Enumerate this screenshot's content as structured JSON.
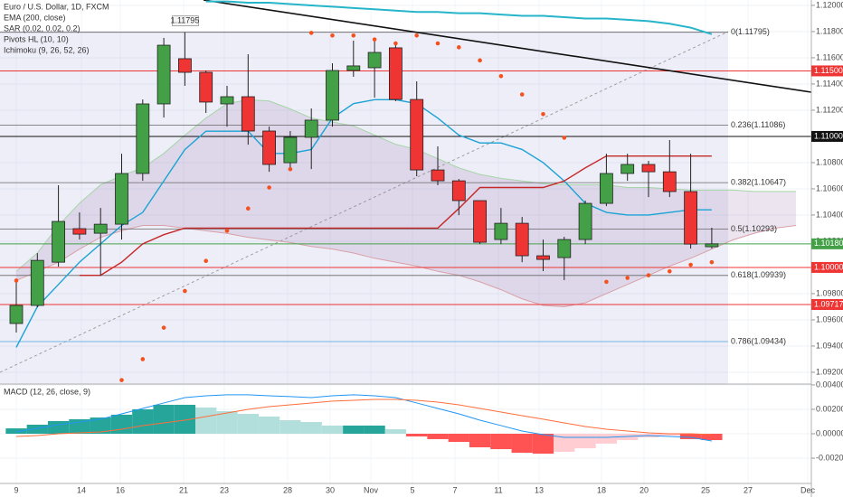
{
  "chart_data": {
    "type": "candlestick",
    "title": "Euro / U.S. Dollar, 1D, FXCM",
    "legend": [
      "EMA (200, close)",
      "SAR (0.02, 0.02, 0.2)",
      "Pivots HL (10, 10)",
      "Ichimoku (9, 26, 52, 26)"
    ],
    "up_color": "#43a047",
    "down_color": "#ef3434",
    "open": [
      1.09572,
      1.0971,
      1.1004,
      1.10296,
      1.10261,
      1.1033,
      1.10717,
      1.11248,
      1.11593,
      1.11489,
      1.11248,
      1.11303,
      1.11041,
      1.10799,
      1.10993,
      1.11124,
      1.11503,
      1.11524,
      1.11676,
      1.11282,
      1.10744,
      1.10661,
      1.1051,
      1.10213,
      1.10337,
      1.10089,
      1.10075,
      1.10213,
      1.10489,
      1.10717,
      1.10786,
      1.1073,
      1.10579,
      1.10158
    ],
    "high": [
      1.09903,
      1.10109,
      1.10627,
      1.1042,
      1.10454,
      1.10868,
      1.11282,
      1.11752,
      1.11795,
      1.11503,
      1.11386,
      1.11627,
      1.11075,
      1.11041,
      1.11213,
      1.11558,
      1.11731,
      1.11731,
      1.11696,
      1.1142,
      1.10924,
      1.10675,
      1.1051,
      1.10454,
      1.10385,
      1.10213,
      1.10234,
      1.1051,
      1.10868,
      1.10868,
      1.10813,
      1.10972,
      1.10868,
      1.10303
    ],
    "low": [
      1.09503,
      1.09696,
      1.10006,
      1.10213,
      1.09937,
      1.10213,
      1.10661,
      1.11144,
      1.11386,
      1.11179,
      1.11075,
      1.10937,
      1.1073,
      1.10765,
      1.10751,
      1.11075,
      1.11455,
      1.11296,
      1.11269,
      1.10696,
      1.10627,
      1.10399,
      1.10178,
      1.10178,
      1.1004,
      1.09972,
      1.09903,
      1.10178,
      1.10468,
      1.10661,
      1.10537,
      1.10537,
      1.10144,
      1.10144
    ],
    "close": [
      1.0971,
      1.10054,
      1.10351,
      1.10254,
      1.1033,
      1.10717,
      1.11248,
      1.11696,
      1.11489,
      1.11262,
      1.11303,
      1.11041,
      1.10786,
      1.10993,
      1.11124,
      1.11503,
      1.11538,
      1.11641,
      1.11282,
      1.10744,
      1.10661,
      1.1051,
      1.10192,
      1.10337,
      1.10089,
      1.10061,
      1.10213,
      1.10489,
      1.10717,
      1.10786,
      1.1073,
      1.10579,
      1.10178,
      1.1018
    ],
    "lines": [
      {
        "color": "#26b5c9",
        "width": 2,
        "values": [
          null,
          null,
          null,
          null,
          null,
          null,
          null,
          null,
          null,
          1.1203,
          1.1203,
          1.1202,
          1.1202,
          1.1201,
          1.12,
          1.1199,
          1.1198,
          1.1197,
          1.1196,
          1.1195,
          1.1195,
          1.1194,
          1.1194,
          1.1193,
          1.1192,
          1.1192,
          1.1191,
          1.119,
          1.119,
          1.1189,
          1.1188,
          1.1186,
          1.1183,
          1.1178
        ]
      },
      {
        "color": "#1aa3d4",
        "width": 1.4,
        "values": [
          1.0939,
          1.097,
          1.0987,
          1.1004,
          1.1018,
          1.1032,
          1.1042,
          1.1066,
          1.109,
          1.1104,
          1.1104,
          1.1104,
          1.1087,
          1.1087,
          1.109,
          1.1114,
          1.1125,
          1.1128,
          1.1128,
          1.1125,
          1.1114,
          1.1101,
          1.1095,
          1.1095,
          1.109,
          1.108,
          1.1066,
          1.1049,
          1.1042,
          1.104,
          1.104,
          1.1042,
          1.1044,
          1.1044
        ]
      },
      {
        "color": "#c62828",
        "width": 1.4,
        "values": [
          null,
          null,
          null,
          1.0994,
          1.0994,
          1.1004,
          1.1018,
          1.1025,
          1.103,
          1.103,
          1.103,
          1.103,
          1.103,
          1.103,
          1.103,
          1.103,
          1.103,
          1.103,
          1.103,
          1.103,
          1.103,
          1.1045,
          1.1061,
          1.1061,
          1.1061,
          1.1061,
          1.1066,
          1.1076,
          1.1085,
          1.1085,
          1.1085,
          1.1085,
          1.1085,
          1.1085
        ]
      }
    ],
    "cloud": {
      "color": "rgba(150,110,170,0.18)",
      "span_a": {
        "color": "#a5d6a7",
        "values": [
          1.0997,
          1.1011,
          1.1032,
          1.1049,
          1.1063,
          1.107,
          1.1076,
          1.1087,
          1.1101,
          1.1114,
          1.1125,
          1.1128,
          1.1127,
          1.1121,
          1.1114,
          1.1111,
          1.1108,
          1.1101,
          1.1094,
          1.109,
          1.1083,
          1.1076,
          1.1071,
          1.1068,
          1.1066,
          1.1064,
          1.1063,
          1.1063,
          1.1063,
          1.1061,
          1.1061,
          1.106,
          1.1059,
          1.1059,
          1.1059,
          1.1058,
          1.1058,
          1.1058
        ]
      },
      "span_b": {
        "color": "#d8a0a8",
        "values": [
          1.099,
          1.0997,
          1.1004,
          1.1014,
          1.1023,
          1.1028,
          1.1032,
          1.1032,
          1.103,
          1.1028,
          1.1026,
          1.1023,
          1.1021,
          1.1019,
          1.1016,
          1.1014,
          1.1011,
          1.1007,
          1.1004,
          1.1001,
          1.0997,
          1.0994,
          1.0989,
          1.0983,
          1.0976,
          1.0971,
          1.097,
          1.0973,
          1.098,
          1.0987,
          1.0994,
          1.1001,
          1.1007,
          1.1014,
          1.1021,
          1.1026,
          1.103,
          1.1032
        ]
      }
    },
    "sar": {
      "color": "#f4511e",
      "values": [
        1.099,
        null,
        null,
        null,
        null,
        1.0914,
        1.093,
        1.0954,
        1.0982,
        1.1005,
        1.1028,
        1.1045,
        1.1061,
        1.1075,
        1.1179,
        1.1177,
        1.1177,
        1.1174,
        1.1171,
        1.1177,
        1.1171,
        1.1168,
        1.1158,
        1.1146,
        1.1132,
        1.1117,
        1.1099,
        null,
        1.0989,
        1.0992,
        1.0994,
        1.0997,
        1.1002,
        1.1004
      ]
    },
    "pivot_high": {
      "value": 1.11795,
      "label": "1.11795"
    },
    "fib_levels": [
      {
        "value": 1.11795,
        "label": "0(1.11795)"
      },
      {
        "value": 1.11086,
        "label": "0.236(1.11086)"
      },
      {
        "value": 1.10647,
        "label": "0.382(1.10647)"
      },
      {
        "value": 1.10293,
        "label": "0.5(1.10293)"
      },
      {
        "value": 1.09939,
        "label": "0.618(1.09939)"
      },
      {
        "value": 1.09434,
        "label": "0.786(1.09434)"
      }
    ],
    "price_lines": [
      {
        "value": 1.115,
        "label": "1.11500",
        "color": "#ef3434"
      },
      {
        "value": 1.11,
        "label": "1.11000",
        "color": "#111111"
      },
      {
        "value": 1.1018,
        "label": "1.10180",
        "color": "#43a047"
      },
      {
        "value": 1.1,
        "label": "1.10000",
        "color": "#ef3434"
      },
      {
        "value": 1.09717,
        "label": "1.09717",
        "color": "#ef3434"
      }
    ],
    "ylim": [
      1.0911,
      1.12041
    ],
    "yticks": [
      {
        "value": 1.12,
        "label": "1.12000"
      },
      {
        "value": 1.118,
        "label": "1.11800"
      },
      {
        "value": 1.116,
        "label": "1.11600"
      },
      {
        "value": 1.114,
        "label": "1.11400"
      },
      {
        "value": 1.112,
        "label": "1.11200"
      },
      {
        "value": 1.11,
        "label": "1.11000"
      },
      {
        "value": 1.108,
        "label": "1.10800"
      },
      {
        "value": 1.106,
        "label": "1.10600"
      },
      {
        "value": 1.104,
        "label": "1.10400"
      },
      {
        "value": 1.102,
        "label": "1.10200"
      },
      {
        "value": 1.1,
        "label": "1.10000"
      },
      {
        "value": 1.098,
        "label": "1.09800"
      },
      {
        "value": 1.096,
        "label": "1.09600"
      },
      {
        "value": 1.094,
        "label": "1.09400"
      },
      {
        "value": 1.092,
        "label": "1.09200"
      }
    ],
    "x_labels": [
      "9",
      "14",
      "16",
      "21",
      "23",
      "28",
      "30",
      "Nov",
      "5",
      "7",
      "11",
      "13",
      "18",
      "20",
      "25",
      "27",
      "Dec"
    ],
    "macd": {
      "title": "MACD (12, 26, close, 9)",
      "ylim": [
        -0.00407,
        0.00407
      ],
      "yticks": [
        {
          "value": 0.004,
          "label": "0.00400"
        },
        {
          "value": 0.002,
          "label": "0.00200"
        },
        {
          "value": 0,
          "label": "0.00000"
        },
        {
          "value": -0.002,
          "label": "-0.00200"
        }
      ],
      "histogram": [
        0.00044,
        0.00074,
        0.00104,
        0.00119,
        0.00133,
        0.00156,
        0.002,
        0.00237,
        0.00237,
        0.00215,
        0.00185,
        0.00163,
        0.00141,
        0.00111,
        0.00096,
        0.00067,
        0.00067,
        0.00067,
        0.00037,
        -0.00022,
        -0.00044,
        -0.00067,
        -0.00111,
        -0.00126,
        -0.00156,
        -0.00163,
        -0.00148,
        -0.00119,
        -0.00081,
        -0.00052,
        -0.0003,
        -0.00015,
        -0.00044,
        -0.00052
      ],
      "macd_line": {
        "color": "#2196f3",
        "values": [
          0.00015,
          0.00044,
          0.00074,
          0.00096,
          0.00119,
          0.00163,
          0.00207,
          0.00252,
          0.00296,
          0.00311,
          0.00319,
          0.00319,
          0.00311,
          0.00304,
          0.00296,
          0.00311,
          0.00319,
          0.00311,
          0.00296,
          0.00252,
          0.00207,
          0.00163,
          0.00111,
          0.00067,
          0.00022,
          -7e-05,
          -0.0003,
          -0.0003,
          -0.0003,
          -0.00022,
          -0.00015,
          -0.00022,
          -0.0003,
          -0.00059
        ]
      },
      "signal_line": {
        "color": "#ff6d3a",
        "values": [
          -0.00022,
          -0.00015,
          0,
          7e-05,
          0.00015,
          0.00037,
          0.00067,
          0.00089,
          0.00111,
          0.00141,
          0.0017,
          0.002,
          0.00222,
          0.00237,
          0.00252,
          0.00267,
          0.00274,
          0.00281,
          0.00281,
          0.00274,
          0.00259,
          0.00237,
          0.00207,
          0.00178,
          0.00148,
          0.00119,
          0.00089,
          0.00059,
          0.00037,
          0.00022,
          7e-05,
          0,
          0,
          -7e-05
        ]
      }
    }
  }
}
